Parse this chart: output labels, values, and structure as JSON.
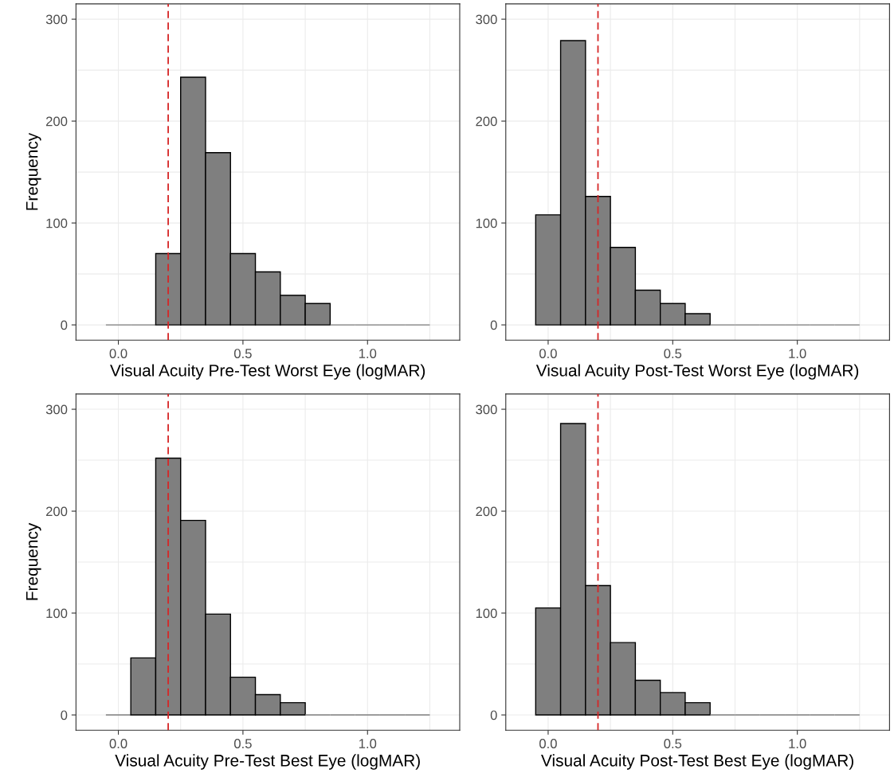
{
  "chart_data": [
    {
      "type": "histogram",
      "xlabel": "Visual Acuity Pre-Test Worst Eye (logMAR)",
      "ylabel": "Frequency",
      "color": "#7f7f7f",
      "bins": [
        -0.05,
        0.05,
        0.15,
        0.25,
        0.35,
        0.45,
        0.55,
        0.65,
        0.75,
        0.85,
        0.95,
        1.05,
        1.15,
        1.25
      ],
      "values": [
        0,
        0,
        70,
        243,
        169,
        70,
        52,
        29,
        21,
        0,
        0,
        0,
        0
      ],
      "xlim": [
        -0.17,
        1.37
      ],
      "ylim": [
        -15,
        315
      ],
      "xticks": [
        {
          "value": 0,
          "label": "0.0"
        },
        {
          "value": 0.25,
          "label": null
        },
        {
          "value": 0.5,
          "label": "0.5"
        },
        {
          "value": 0.75,
          "label": null
        },
        {
          "value": 1,
          "label": "1.0"
        },
        {
          "value": 1.25,
          "label": null
        }
      ],
      "yticks": [
        0,
        {
          "value": 50,
          "label": null
        },
        100,
        {
          "value": 150,
          "label": null
        },
        200,
        {
          "value": 250,
          "label": null
        },
        300
      ],
      "grid": true,
      "ref_lines": [
        {
          "axis": "x",
          "value": 0.2,
          "color": "#d62728",
          "line_style": "dashed"
        }
      ]
    },
    {
      "type": "histogram",
      "xlabel": "Visual Acuity Post-Test Worst Eye (logMAR)",
      "color": "#7f7f7f",
      "bins": [
        -0.05,
        0.05,
        0.15,
        0.25,
        0.35,
        0.45,
        0.55,
        0.65,
        0.75,
        0.85,
        0.95,
        1.05,
        1.15,
        1.25
      ],
      "values": [
        108,
        279,
        126,
        76,
        34,
        21,
        11,
        0,
        0,
        0,
        0,
        0,
        0
      ],
      "xlim": [
        -0.17,
        1.37
      ],
      "ylim": [
        -15,
        315
      ],
      "xticks": [
        {
          "value": 0,
          "label": "0.0"
        },
        {
          "value": 0.25,
          "label": null
        },
        {
          "value": 0.5,
          "label": "0.5"
        },
        {
          "value": 0.75,
          "label": null
        },
        {
          "value": 1,
          "label": "1.0"
        },
        {
          "value": 1.25,
          "label": null
        }
      ],
      "yticks": [
        0,
        {
          "value": 50,
          "label": null
        },
        100,
        {
          "value": 150,
          "label": null
        },
        200,
        {
          "value": 250,
          "label": null
        },
        300
      ],
      "grid": true,
      "ref_lines": [
        {
          "axis": "x",
          "value": 0.2,
          "color": "#d62728",
          "line_style": "dashed"
        }
      ]
    },
    {
      "type": "histogram",
      "xlabel": "Visual Acuity Pre-Test Best Eye (logMAR)",
      "ylabel": "Frequency",
      "color": "#7f7f7f",
      "bins": [
        -0.05,
        0.05,
        0.15,
        0.25,
        0.35,
        0.45,
        0.55,
        0.65,
        0.75,
        0.85,
        0.95,
        1.05,
        1.15,
        1.25
      ],
      "values": [
        0,
        56,
        252,
        191,
        99,
        37,
        20,
        12,
        0,
        0,
        0,
        0,
        0
      ],
      "xlim": [
        -0.17,
        1.37
      ],
      "ylim": [
        -15,
        315
      ],
      "xticks": [
        {
          "value": 0,
          "label": "0.0"
        },
        {
          "value": 0.25,
          "label": null
        },
        {
          "value": 0.5,
          "label": "0.5"
        },
        {
          "value": 0.75,
          "label": null
        },
        {
          "value": 1,
          "label": "1.0"
        },
        {
          "value": 1.25,
          "label": null
        }
      ],
      "yticks": [
        0,
        {
          "value": 50,
          "label": null
        },
        100,
        {
          "value": 150,
          "label": null
        },
        200,
        {
          "value": 250,
          "label": null
        },
        300
      ],
      "grid": true,
      "ref_lines": [
        {
          "axis": "x",
          "value": 0.2,
          "color": "#d62728",
          "line_style": "dashed"
        }
      ]
    },
    {
      "type": "histogram",
      "xlabel": "Visual Acuity Post-Test Best Eye (logMAR)",
      "color": "#7f7f7f",
      "bins": [
        -0.05,
        0.05,
        0.15,
        0.25,
        0.35,
        0.45,
        0.55,
        0.65,
        0.75,
        0.85,
        0.95,
        1.05,
        1.15,
        1.25
      ],
      "values": [
        105,
        286,
        127,
        71,
        34,
        22,
        12,
        0,
        0,
        0,
        0,
        0,
        0
      ],
      "xlim": [
        -0.17,
        1.37
      ],
      "ylim": [
        -15,
        315
      ],
      "xticks": [
        {
          "value": 0,
          "label": "0.0"
        },
        {
          "value": 0.25,
          "label": null
        },
        {
          "value": 0.5,
          "label": "0.5"
        },
        {
          "value": 0.75,
          "label": null
        },
        {
          "value": 1,
          "label": "1.0"
        },
        {
          "value": 1.25,
          "label": null
        }
      ],
      "yticks": [
        0,
        {
          "value": 50,
          "label": null
        },
        100,
        {
          "value": 150,
          "label": null
        },
        200,
        {
          "value": 250,
          "label": null
        },
        300
      ],
      "grid": true,
      "ref_lines": [
        {
          "axis": "x",
          "value": 0.2,
          "color": "#d62728",
          "line_style": "dashed"
        }
      ]
    }
  ]
}
